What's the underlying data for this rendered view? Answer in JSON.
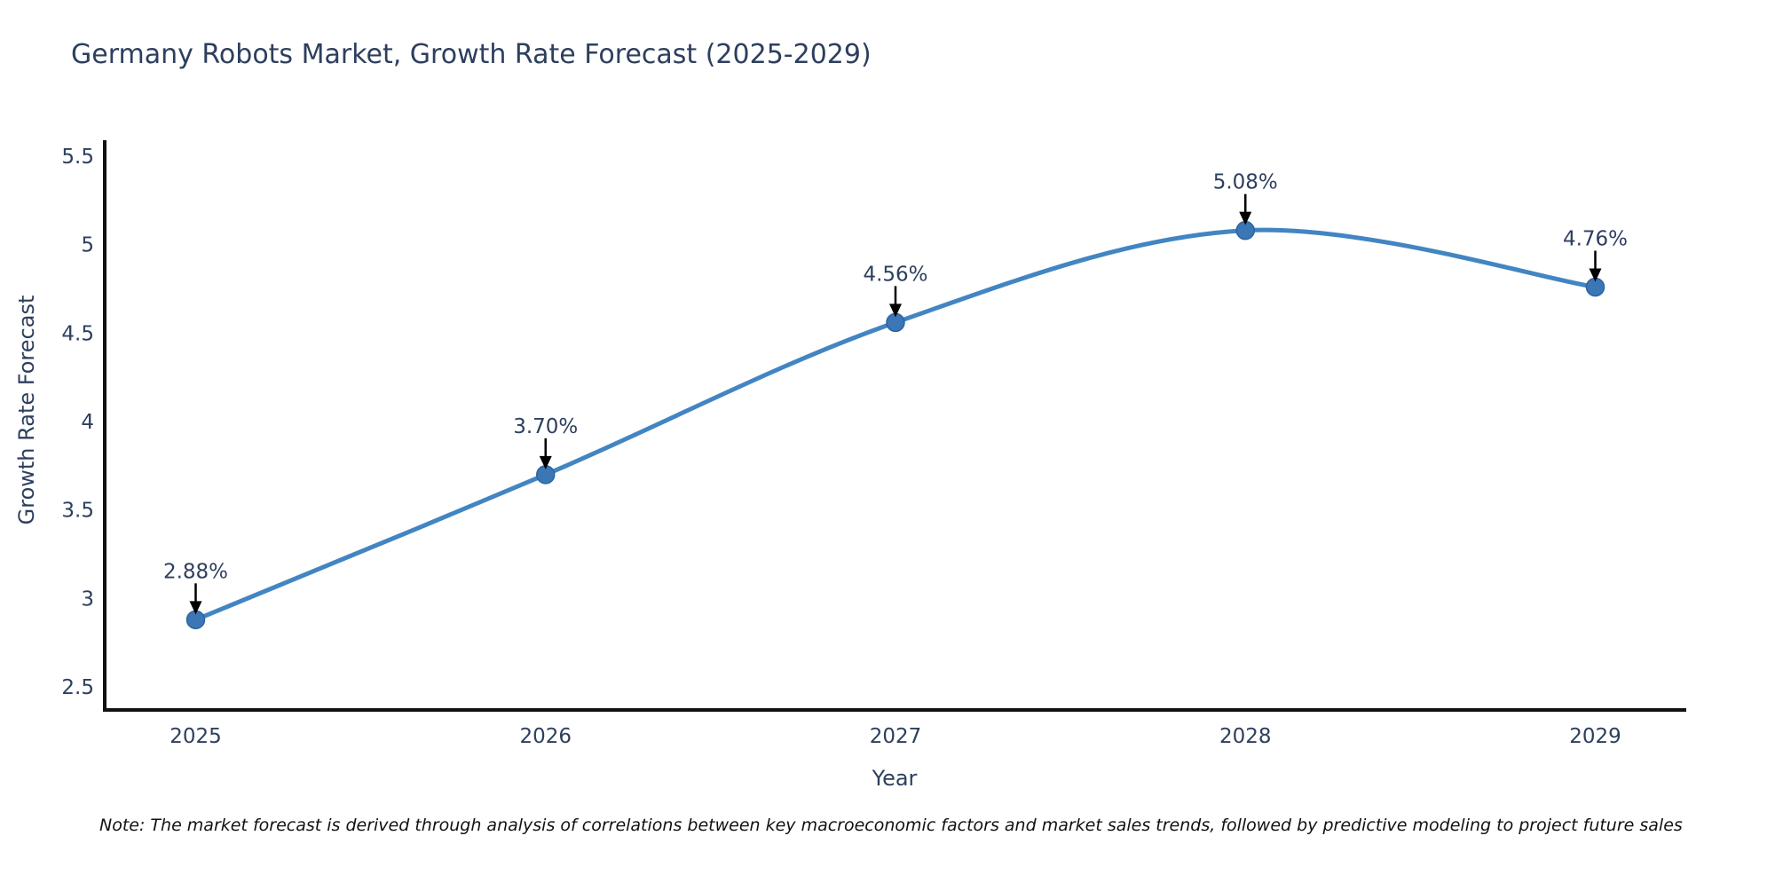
{
  "title": "Germany Robots Market, Growth Rate Forecast (2025-2029)",
  "note": "Note: The market forecast is derived through analysis of correlations between key macroeconomic factors and market sales trends, followed by predictive modeling to project future sales",
  "chart_data": {
    "type": "line",
    "title": "Germany Robots Market, Growth Rate Forecast (2025-2029)",
    "x": [
      2025,
      2026,
      2027,
      2028,
      2029
    ],
    "x_tick_labels": [
      "2025",
      "2026",
      "2027",
      "2028",
      "2029"
    ],
    "series": [
      {
        "name": "Growth Rate Forecast",
        "values": [
          2.88,
          3.7,
          4.56,
          5.08,
          4.76
        ]
      }
    ],
    "point_labels": [
      "2.88%",
      "3.70%",
      "4.56%",
      "5.08%",
      "4.76%"
    ],
    "xlabel": "Year",
    "ylabel": "Growth Rate Forecast",
    "yticks": [
      5.5,
      5,
      4.5,
      4,
      3.5,
      3,
      2.5
    ],
    "xlim": [
      2024.74,
      2029.26
    ],
    "ylim": [
      2.37,
      5.59
    ],
    "grid": false,
    "legend": false,
    "line_shape": "spline",
    "annotation_style": "value label above each point with downward black arrow",
    "colors": {
      "line": "#4285c2",
      "marker_fill": "#3a77b4",
      "marker_stroke": "#2e649e",
      "axis_line": "#111111",
      "tick_text": "#2d3f5e",
      "annotation_text": "#2d3f5e",
      "annotation_arrow": "#000000"
    }
  }
}
